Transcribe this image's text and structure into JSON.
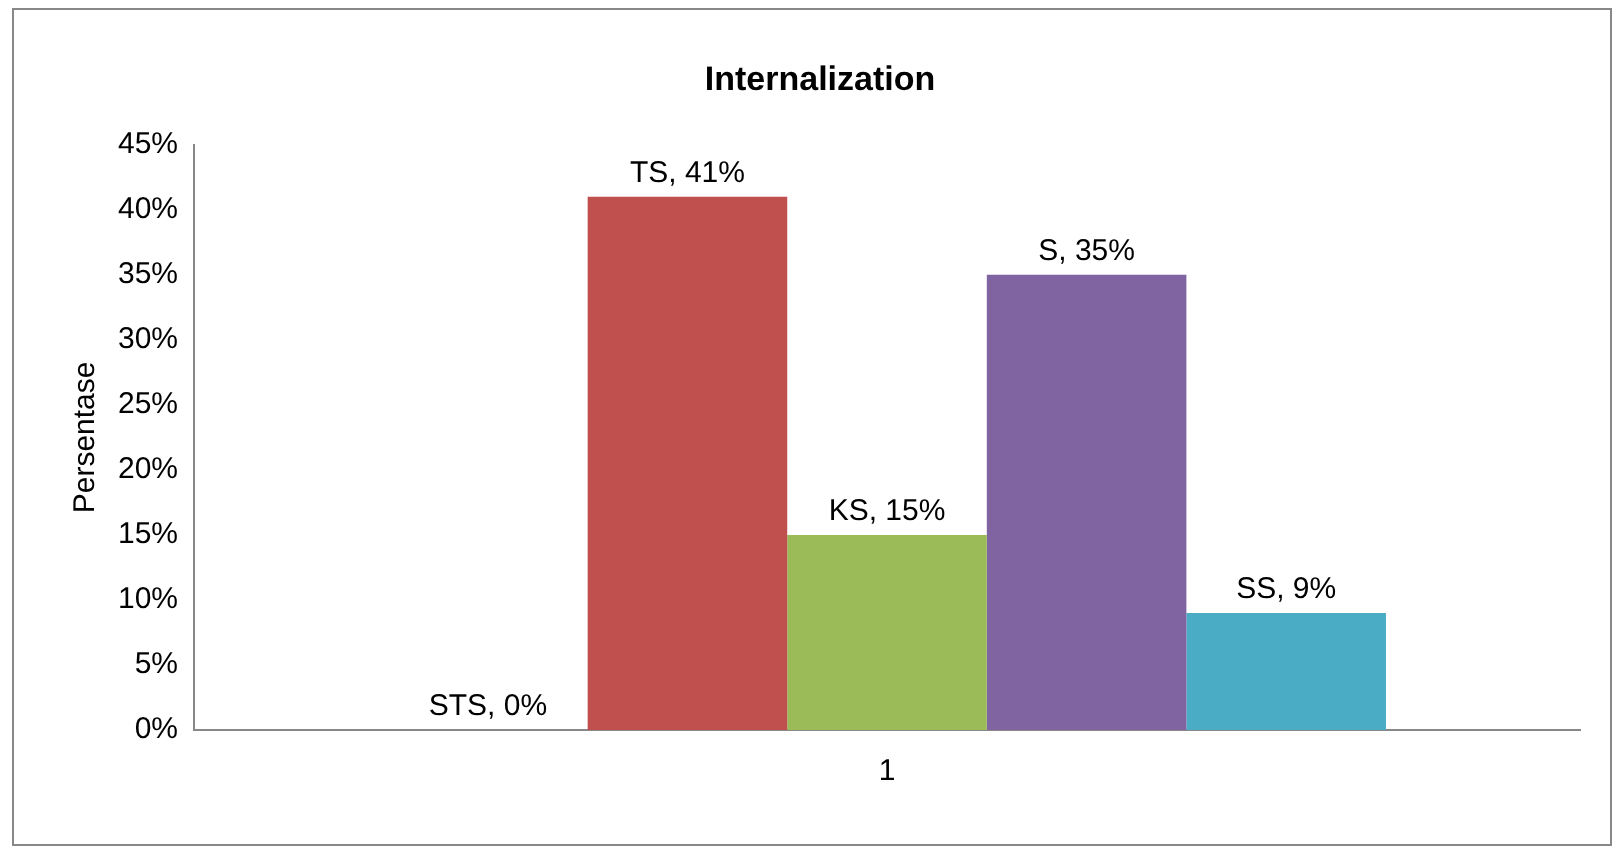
{
  "chart_data": {
    "type": "bar",
    "title": "Internalization",
    "ylabel": "Persentase",
    "categories": [
      "1"
    ],
    "series": [
      {
        "name": "STS",
        "color": "#4f81bd",
        "values": [
          0
        ],
        "value_labels": [
          ", 0%"
        ]
      },
      {
        "name": "TS",
        "color": "#c0504d",
        "values": [
          41
        ],
        "value_labels": [
          ", 41%"
        ]
      },
      {
        "name": "KS",
        "color": "#9bbb59",
        "values": [
          15
        ],
        "value_labels": [
          ", 15%"
        ]
      },
      {
        "name": "S",
        "color": "#8064a2",
        "values": [
          35
        ],
        "value_labels": [
          ", 35%"
        ]
      },
      {
        "name": "SS",
        "color": "#4bacc6",
        "values": [
          9
        ],
        "value_labels": [
          ", 9%"
        ]
      }
    ],
    "ylim": [
      0,
      45
    ],
    "yticks": [
      {
        "value": 0,
        "label": "0%"
      },
      {
        "value": 5,
        "label": "5%"
      },
      {
        "value": 10,
        "label": "10%"
      },
      {
        "value": 15,
        "label": "15%"
      },
      {
        "value": 20,
        "label": "20%"
      },
      {
        "value": 25,
        "label": "25%"
      },
      {
        "value": 30,
        "label": "30%"
      },
      {
        "value": 35,
        "label": "35%"
      },
      {
        "value": 40,
        "label": "40%"
      },
      {
        "value": 45,
        "label": "45%"
      }
    ],
    "grid": false,
    "legend": false
  }
}
